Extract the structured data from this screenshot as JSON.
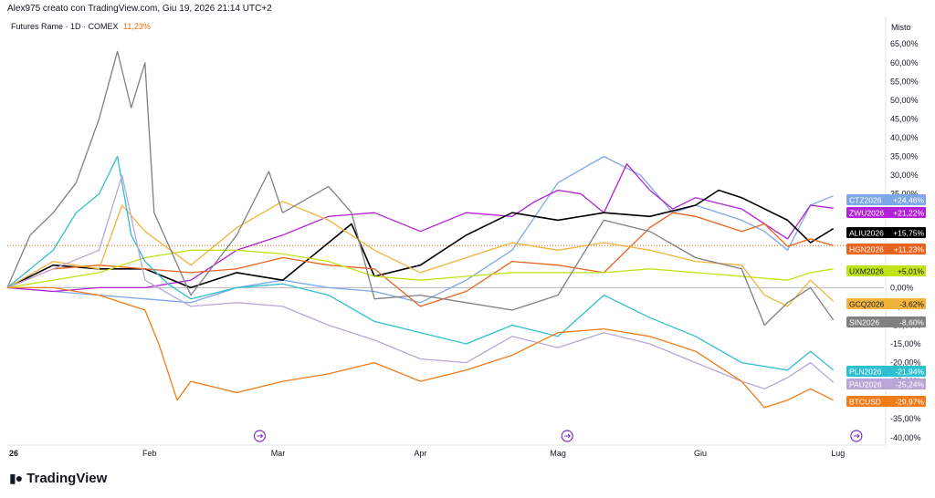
{
  "header": {
    "attribution": "Alex975 creato con TradingView.com, Giu 19, 2026 21:14 UTC+2"
  },
  "legend": {
    "symbol": "Futures Rame · 1D · COMEX",
    "change": "11,23%"
  },
  "scale": {
    "label": "Misto"
  },
  "footer": {
    "brand": "TradingView",
    "logo_icon": "tradingview-logo-icon"
  },
  "chart_data": {
    "type": "line",
    "x_ticks": [
      {
        "label": "26",
        "day": 0
      },
      {
        "label": "Feb",
        "day": 31
      },
      {
        "label": "Mar",
        "day": 59
      },
      {
        "label": "Apr",
        "day": 90
      },
      {
        "label": "Mag",
        "day": 120
      },
      {
        "label": "Giu",
        "day": 151
      },
      {
        "label": "Lug",
        "day": 181
      }
    ],
    "y_ticks": [
      "65,00%",
      "60,00%",
      "55,00%",
      "50,00%",
      "45,00%",
      "40,00%",
      "35,00%",
      "30,00%",
      "25,00%",
      "20,00%",
      "15,00%",
      "10,00%",
      "5,00%",
      "0,00%",
      "-5,00%",
      "-10,00%",
      "-15,00%",
      "-20,00%",
      "-25,00%",
      "-30,00%",
      "-35,00%",
      "-40,00%"
    ],
    "y_tick_values": [
      65,
      60,
      55,
      50,
      45,
      40,
      35,
      30,
      25,
      20,
      15,
      10,
      5,
      0,
      -5,
      -10,
      -15,
      -20,
      -25,
      -30,
      -35,
      -40
    ],
    "ylim": [
      -42,
      67
    ],
    "xlim": [
      0,
      191
    ],
    "event_markers": [
      55,
      122,
      185
    ],
    "event_icon": "arrow-circle-icon",
    "reference_line": 11.23,
    "series": [
      {
        "name": "CTZ2026",
        "label": "+24,46%",
        "color": "#7ea7e8",
        "points": [
          [
            0,
            0
          ],
          [
            10,
            -1
          ],
          [
            20,
            -2
          ],
          [
            30,
            -3
          ],
          [
            40,
            -4
          ],
          [
            50,
            0
          ],
          [
            60,
            2
          ],
          [
            70,
            0
          ],
          [
            80,
            -1
          ],
          [
            90,
            -4
          ],
          [
            100,
            2
          ],
          [
            110,
            10
          ],
          [
            120,
            28
          ],
          [
            130,
            35
          ],
          [
            138,
            30
          ],
          [
            145,
            20
          ],
          [
            150,
            22
          ],
          [
            160,
            18
          ],
          [
            165,
            15
          ],
          [
            170,
            10
          ],
          [
            175,
            22
          ],
          [
            180,
            24.5
          ]
        ]
      },
      {
        "name": "ZWU2026",
        "label": "+21,22%",
        "color": "#b321d8",
        "points": [
          [
            0,
            0
          ],
          [
            10,
            -1
          ],
          [
            20,
            0
          ],
          [
            30,
            0
          ],
          [
            40,
            2
          ],
          [
            50,
            10
          ],
          [
            60,
            14
          ],
          [
            70,
            19
          ],
          [
            80,
            20
          ],
          [
            90,
            15
          ],
          [
            100,
            20
          ],
          [
            110,
            19
          ],
          [
            115,
            23
          ],
          [
            120,
            26
          ],
          [
            125,
            25
          ],
          [
            130,
            20
          ],
          [
            135,
            33
          ],
          [
            140,
            26
          ],
          [
            145,
            21
          ],
          [
            150,
            24
          ],
          [
            160,
            21
          ],
          [
            170,
            13
          ],
          [
            175,
            22
          ],
          [
            180,
            21.2
          ]
        ]
      },
      {
        "name": "ALIU2026",
        "label": "+15,75%",
        "color": "#000000",
        "points": [
          [
            0,
            0
          ],
          [
            10,
            6
          ],
          [
            20,
            5
          ],
          [
            30,
            5
          ],
          [
            40,
            0
          ],
          [
            50,
            4
          ],
          [
            60,
            2
          ],
          [
            70,
            12
          ],
          [
            75,
            17
          ],
          [
            80,
            3
          ],
          [
            90,
            6
          ],
          [
            100,
            14
          ],
          [
            110,
            20
          ],
          [
            120,
            18
          ],
          [
            130,
            20
          ],
          [
            140,
            19
          ],
          [
            150,
            22
          ],
          [
            155,
            26
          ],
          [
            160,
            24
          ],
          [
            170,
            18
          ],
          [
            175,
            12
          ],
          [
            180,
            15.75
          ]
        ]
      },
      {
        "name": "HGN2026",
        "label": "+11,23%",
        "color": "#e8641f",
        "points": [
          [
            0,
            0
          ],
          [
            10,
            5
          ],
          [
            20,
            6
          ],
          [
            30,
            5
          ],
          [
            40,
            4
          ],
          [
            50,
            5
          ],
          [
            60,
            8
          ],
          [
            70,
            6
          ],
          [
            80,
            5
          ],
          [
            90,
            -5
          ],
          [
            100,
            -1
          ],
          [
            110,
            7
          ],
          [
            120,
            6
          ],
          [
            130,
            4
          ],
          [
            140,
            16
          ],
          [
            145,
            20
          ],
          [
            150,
            19
          ],
          [
            160,
            15
          ],
          [
            165,
            17
          ],
          [
            170,
            11
          ],
          [
            175,
            13
          ],
          [
            180,
            11.23
          ]
        ]
      },
      {
        "name": "UXM2026",
        "label": "+5,01%",
        "color": "#bfe31a",
        "points": [
          [
            0,
            0
          ],
          [
            10,
            2
          ],
          [
            20,
            4
          ],
          [
            30,
            8
          ],
          [
            40,
            10
          ],
          [
            50,
            10
          ],
          [
            60,
            9
          ],
          [
            70,
            7
          ],
          [
            80,
            3
          ],
          [
            90,
            2
          ],
          [
            100,
            3
          ],
          [
            110,
            4
          ],
          [
            120,
            4
          ],
          [
            130,
            4
          ],
          [
            140,
            5
          ],
          [
            150,
            4
          ],
          [
            160,
            3
          ],
          [
            170,
            2
          ],
          [
            175,
            4
          ],
          [
            180,
            5.01
          ]
        ]
      },
      {
        "name": "GCQ2026",
        "label": "-3,62%",
        "color": "#f0b43c",
        "points": [
          [
            0,
            0
          ],
          [
            10,
            7
          ],
          [
            20,
            5
          ],
          [
            25,
            22
          ],
          [
            30,
            15
          ],
          [
            40,
            6
          ],
          [
            50,
            16
          ],
          [
            60,
            23
          ],
          [
            70,
            18
          ],
          [
            80,
            10
          ],
          [
            90,
            4
          ],
          [
            100,
            8
          ],
          [
            110,
            12
          ],
          [
            120,
            10
          ],
          [
            130,
            12
          ],
          [
            140,
            10
          ],
          [
            150,
            7
          ],
          [
            160,
            6
          ],
          [
            165,
            -2
          ],
          [
            170,
            -5
          ],
          [
            175,
            2
          ],
          [
            180,
            -3.62
          ]
        ]
      },
      {
        "name": "SIN2026",
        "label": "-8,60%",
        "color": "#808080",
        "points": [
          [
            0,
            0
          ],
          [
            5,
            14
          ],
          [
            10,
            20
          ],
          [
            15,
            28
          ],
          [
            20,
            45
          ],
          [
            24,
            63
          ],
          [
            27,
            48
          ],
          [
            30,
            60
          ],
          [
            32,
            20
          ],
          [
            40,
            -2
          ],
          [
            50,
            14
          ],
          [
            57,
            31
          ],
          [
            60,
            20
          ],
          [
            70,
            27
          ],
          [
            75,
            20
          ],
          [
            80,
            -3
          ],
          [
            90,
            -2
          ],
          [
            100,
            -4
          ],
          [
            110,
            -6
          ],
          [
            120,
            -2
          ],
          [
            130,
            18
          ],
          [
            140,
            15
          ],
          [
            150,
            8
          ],
          [
            160,
            5
          ],
          [
            165,
            -10
          ],
          [
            170,
            -4
          ],
          [
            175,
            0
          ],
          [
            180,
            -8.6
          ]
        ]
      },
      {
        "name": "PLN2026",
        "label": "-21,94%",
        "color": "#2fbfd0",
        "points": [
          [
            0,
            0
          ],
          [
            10,
            10
          ],
          [
            15,
            20
          ],
          [
            20,
            25
          ],
          [
            24,
            35
          ],
          [
            27,
            14
          ],
          [
            30,
            7
          ],
          [
            35,
            1
          ],
          [
            40,
            -3
          ],
          [
            50,
            0
          ],
          [
            60,
            1
          ],
          [
            70,
            -2
          ],
          [
            80,
            -9
          ],
          [
            90,
            -12
          ],
          [
            100,
            -15
          ],
          [
            110,
            -10
          ],
          [
            120,
            -13
          ],
          [
            130,
            -2
          ],
          [
            140,
            -8
          ],
          [
            150,
            -13
          ],
          [
            160,
            -20
          ],
          [
            170,
            -22
          ],
          [
            175,
            -17
          ],
          [
            180,
            -21.94
          ]
        ]
      },
      {
        "name": "PAU2026",
        "label": "-25,24%",
        "color": "#b9a6d6",
        "points": [
          [
            0,
            0
          ],
          [
            10,
            5
          ],
          [
            20,
            10
          ],
          [
            25,
            30
          ],
          [
            30,
            2
          ],
          [
            40,
            -5
          ],
          [
            50,
            -4
          ],
          [
            60,
            -5
          ],
          [
            70,
            -10
          ],
          [
            80,
            -14
          ],
          [
            90,
            -19
          ],
          [
            100,
            -20
          ],
          [
            110,
            -13
          ],
          [
            120,
            -16
          ],
          [
            130,
            -12
          ],
          [
            140,
            -15
          ],
          [
            150,
            -20
          ],
          [
            160,
            -25
          ],
          [
            165,
            -27
          ],
          [
            170,
            -24
          ],
          [
            175,
            -20
          ],
          [
            180,
            -25.24
          ]
        ]
      },
      {
        "name": "BTCUSD",
        "label": "-29,97%",
        "color": "#f07c1a",
        "points": [
          [
            0,
            0
          ],
          [
            10,
            0
          ],
          [
            20,
            -2
          ],
          [
            30,
            -6
          ],
          [
            33,
            -15
          ],
          [
            37,
            -30
          ],
          [
            40,
            -25
          ],
          [
            50,
            -28
          ],
          [
            60,
            -25
          ],
          [
            70,
            -23
          ],
          [
            80,
            -20
          ],
          [
            90,
            -25
          ],
          [
            100,
            -22
          ],
          [
            110,
            -18
          ],
          [
            120,
            -12
          ],
          [
            130,
            -11
          ],
          [
            140,
            -13
          ],
          [
            150,
            -17
          ],
          [
            160,
            -25
          ],
          [
            165,
            -32
          ],
          [
            170,
            -30
          ],
          [
            175,
            -27
          ],
          [
            180,
            -30
          ]
        ]
      }
    ]
  }
}
